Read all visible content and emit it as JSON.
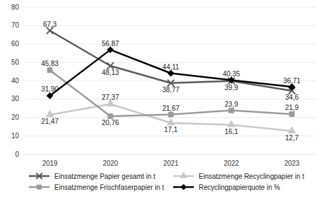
{
  "chart_data": {
    "type": "line",
    "categories": [
      "2019",
      "2020",
      "2021",
      "2022",
      "2023"
    ],
    "ylim": [
      0,
      80
    ],
    "yticks": [
      0,
      10,
      20,
      30,
      40,
      50,
      60,
      70,
      80
    ],
    "grid": true,
    "data_labels": true,
    "legend": "bottom",
    "series": [
      {
        "name": "Einsatzmenge Papier gesamt in t",
        "color": "#595959",
        "marker": "x",
        "values": [
          67.3,
          48.13,
          38.77,
          39.9,
          34.6
        ],
        "value_labels": [
          "67,3",
          "48,13",
          "38,77",
          "39,9",
          "34,6"
        ]
      },
      {
        "name": "Einsatzmenge Recyclingpapier in t",
        "color": "#c8c8c8",
        "marker": "triangle",
        "values": [
          21.47,
          27.37,
          17.1,
          16.1,
          12.7
        ],
        "value_labels": [
          "21,47",
          "27,37",
          "17,1",
          "16,1",
          "12,7"
        ]
      },
      {
        "name": "Einsatzmenge Frischfaserpapier in t",
        "color": "#9a9a9a",
        "marker": "square",
        "values": [
          45.83,
          20.76,
          21.67,
          23.9,
          21.9
        ],
        "value_labels": [
          "45,83",
          "20,76",
          "21,67",
          "23,9",
          "21,9"
        ]
      },
      {
        "name": "Recyclingpapierquote in %",
        "color": "#000000",
        "marker": "diamond",
        "values": [
          31.9,
          56.87,
          44.11,
          40.35,
          36.71
        ],
        "value_labels": [
          "31,90",
          "56,87",
          "44,11",
          "40,35",
          "36,71"
        ]
      }
    ]
  }
}
